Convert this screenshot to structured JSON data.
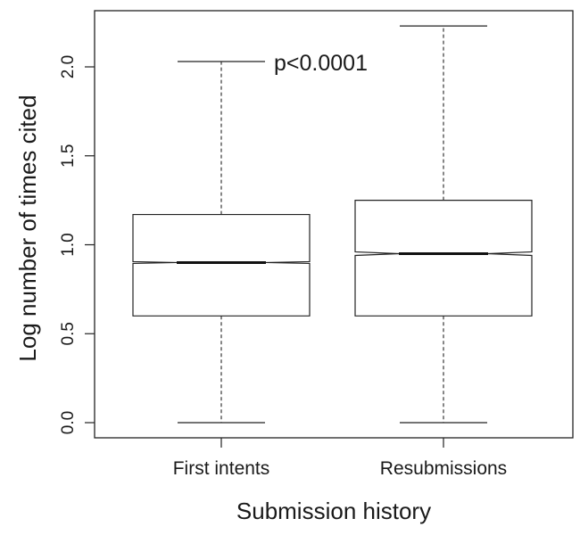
{
  "chart_data": {
    "type": "boxplot",
    "notched": true,
    "xlabel": "Submission history",
    "ylabel": "Log number of times cited",
    "ylim": [
      -0.08,
      2.3
    ],
    "yticks": [
      "0.0",
      "0.5",
      "1.0",
      "1.5",
      "2.0"
    ],
    "ytick_values": [
      0.0,
      0.5,
      1.0,
      1.5,
      2.0
    ],
    "grid": false,
    "annotation": "p<0.0001",
    "categories": [
      "First intents",
      "Resubmissions"
    ],
    "boxes": [
      {
        "category": "First intents",
        "whisker_low": 0.0,
        "q1": 0.6,
        "median": 0.9,
        "q3": 1.17,
        "whisker_high": 2.03,
        "notch_low": 0.895,
        "notch_high": 0.905
      },
      {
        "category": "Resubmissions",
        "whisker_low": 0.0,
        "q1": 0.6,
        "median": 0.95,
        "q3": 1.25,
        "whisker_high": 2.23,
        "notch_low": 0.94,
        "notch_high": 0.96
      }
    ]
  }
}
